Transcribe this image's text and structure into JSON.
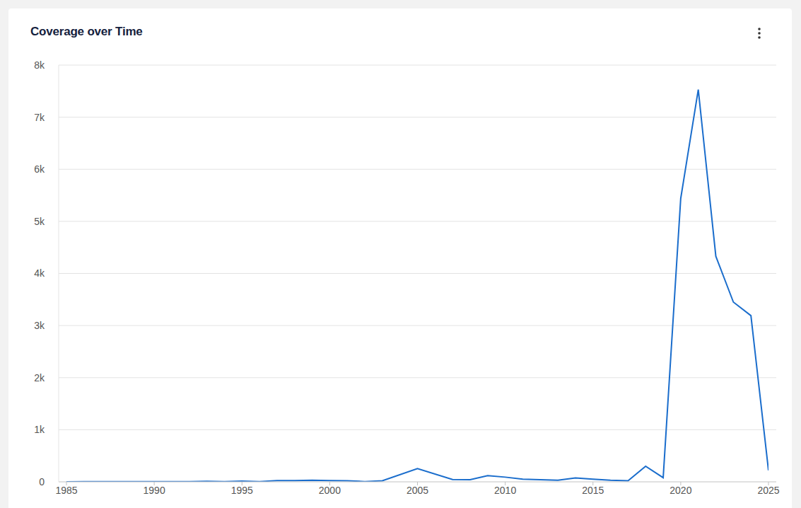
{
  "chart_data": {
    "type": "line",
    "title": "Coverage over Time",
    "x": [
      1985,
      1986,
      1987,
      1988,
      1989,
      1990,
      1991,
      1992,
      1993,
      1994,
      1995,
      1996,
      1997,
      1998,
      1999,
      2000,
      2001,
      2002,
      2003,
      2005,
      2007,
      2008,
      2009,
      2010,
      2011,
      2012,
      2013,
      2014,
      2015,
      2016,
      2017,
      2018,
      2019,
      2020,
      2021,
      2022,
      2023,
      2024,
      2025
    ],
    "values": [
      0,
      2,
      2,
      3,
      3,
      3,
      4,
      5,
      10,
      5,
      15,
      5,
      25,
      25,
      30,
      25,
      20,
      5,
      20,
      255,
      45,
      40,
      120,
      90,
      50,
      40,
      30,
      75,
      50,
      30,
      20,
      300,
      80,
      5440,
      7530,
      4330,
      3450,
      3190,
      220
    ],
    "color": "#1a6dcc",
    "xlim": [
      1985,
      2025
    ],
    "xticks": [
      1985,
      1990,
      1995,
      2000,
      2005,
      2010,
      2015,
      2020,
      2025
    ],
    "ylim": [
      0,
      8000
    ],
    "yticks": [
      0,
      {
        "value": 1000,
        "label": "1k"
      },
      {
        "value": 2000,
        "label": "2k"
      },
      {
        "value": 3000,
        "label": "3k"
      },
      {
        "value": 4000,
        "label": "4k"
      },
      {
        "value": 5000,
        "label": "5k"
      },
      {
        "value": 6000,
        "label": "6k"
      },
      {
        "value": 7000,
        "label": "7k"
      },
      {
        "value": 8000,
        "label": "8k"
      }
    ],
    "grid": true
  }
}
